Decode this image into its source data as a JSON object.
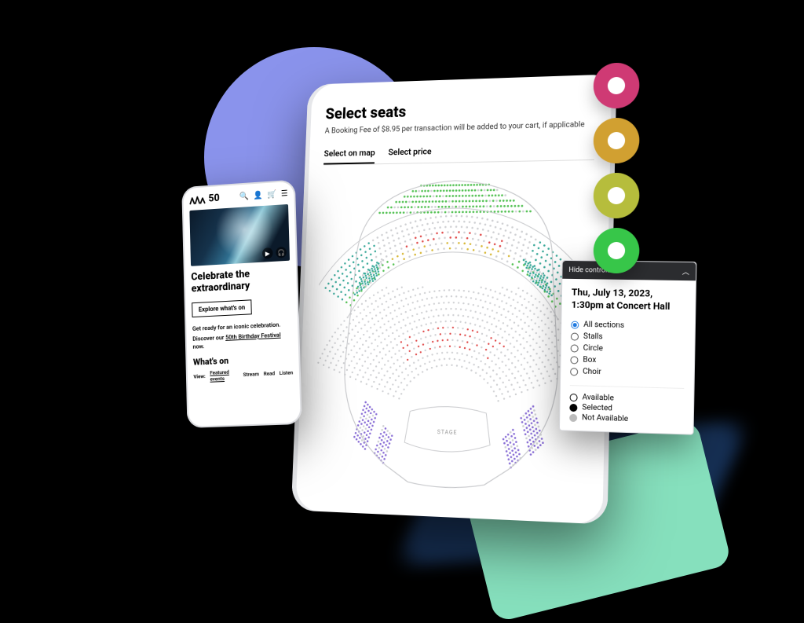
{
  "decor": {
    "circle_color": "#8a93ec",
    "swoosh_color": "#86e0bd",
    "shadow_color": "#1a3a66cc"
  },
  "rings": [
    {
      "color": "#cf3a74"
    },
    {
      "color": "#d1a031"
    },
    {
      "color": "#b6bd3c"
    },
    {
      "color": "#37c649"
    }
  ],
  "tablet": {
    "title": "Select seats",
    "subtitle": "A Booking Fee of $8.95 per transaction will be added to your cart, if applicable",
    "tabs": {
      "map": "Select on map",
      "price": "Select price"
    },
    "seatmap": {
      "stage_label": "STAGE",
      "colors": {
        "outline": "#c9cacd",
        "green": "#55c255",
        "yellow": "#d8b93a",
        "red": "#e04a4a",
        "teal": "#3aa99a",
        "purple": "#8a6fd6",
        "grey": "#cfd0d3"
      }
    }
  },
  "phone": {
    "brand_text": "50",
    "headline": "Celebrate the extraordinary",
    "cta": "Explore what's on",
    "copy1_a": "Get ready for an iconic celebration.",
    "copy2_a": "Discover our ",
    "copy2_link": "50th Birthday Festival",
    "copy2_b": " now.",
    "whats_on": "What's on",
    "view_label": "View:",
    "views": [
      "Featured events",
      "Stream",
      "Read",
      "Listen"
    ]
  },
  "panel": {
    "hide": "Hide controls",
    "datetime": "Thu, July 13, 2023, 1:30pm at Concert Hall",
    "sections": [
      {
        "label": "All sections",
        "selected": true
      },
      {
        "label": "Stalls",
        "selected": false
      },
      {
        "label": "Circle",
        "selected": false
      },
      {
        "label": "Box",
        "selected": false
      },
      {
        "label": "Choir",
        "selected": false
      }
    ],
    "legend": {
      "available": "Available",
      "selected": "Selected",
      "na": "Not Available"
    }
  }
}
